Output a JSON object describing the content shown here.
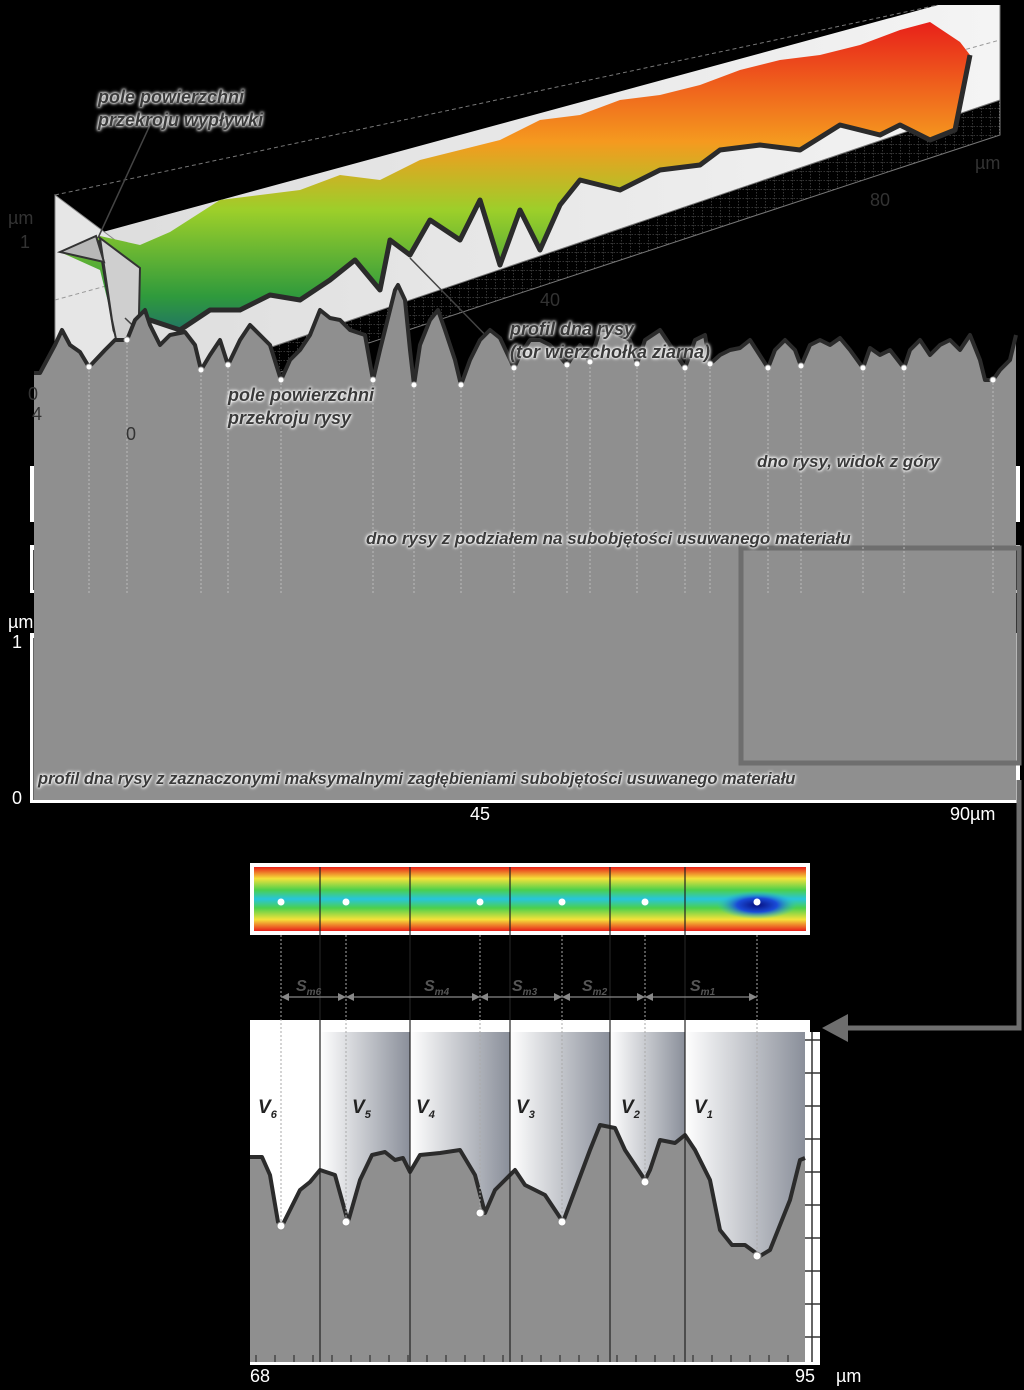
{
  "panel_3d": {
    "z_unit": "µm",
    "z_ticks": [
      "1",
      "0"
    ],
    "y_ticks": [
      "4",
      "0"
    ],
    "x_ticks": [
      "40",
      "80"
    ],
    "x_unit": "µm",
    "annotations": {
      "flash_area": [
        "pole powierzchni",
        "przekroju wypływki"
      ],
      "groove_area": [
        "pole powierzchni",
        "przekroju rysy"
      ],
      "bottom_profile": [
        "profil dna rysy",
        "(tor wierzchołka ziarna)"
      ]
    }
  },
  "top_view": {
    "caption": "dno rysy, widok z góry"
  },
  "segmented_view": {
    "caption": "dno rysy z podziałem na subobjętości usuwanego materiału"
  },
  "profile": {
    "y_unit": "µm",
    "y_ticks": [
      "1",
      "0"
    ],
    "x_ticks": [
      "45",
      "90µm"
    ],
    "caption": "profil dna rysy z zaznaczonymi maksymalnymi zagłębieniami subobjętości usuwanego materiału",
    "minima_x": [
      89,
      127,
      201,
      228,
      281,
      373,
      414,
      461,
      514,
      567,
      590,
      637,
      685,
      710,
      768,
      801,
      863,
      904,
      993
    ]
  },
  "zoom": {
    "x_ticks": [
      "68",
      "95"
    ],
    "x_unit": "µm",
    "spacings": [
      "Sm6",
      "Sm4",
      "Sm3",
      "Sm2",
      "Sm1"
    ],
    "volumes": [
      "V6",
      "V5",
      "V4",
      "V3",
      "V2",
      "V1"
    ]
  },
  "colors": {
    "surface_red": "#e8201a",
    "surface_orange": "#f59a1f",
    "surface_green": "#3aa83a",
    "deep_blue": "#0a1a8a",
    "profile_line": "#2b2b2b",
    "profile_fill": "#8f8f8f"
  }
}
